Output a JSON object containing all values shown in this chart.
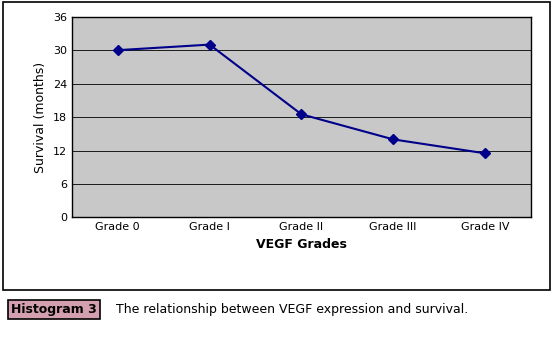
{
  "x_labels": [
    "Grade 0",
    "Grade I",
    "Grade II",
    "Grade III",
    "Grade IV"
  ],
  "y_values": [
    30,
    31,
    18.5,
    14,
    11.5
  ],
  "x_values": [
    0,
    1,
    2,
    3,
    4
  ],
  "line_color": "#00008B",
  "marker": "D",
  "marker_size": 5,
  "xlabel": "VEGF Grades",
  "ylabel": "Survival (months)",
  "ylim": [
    0,
    36
  ],
  "yticks": [
    0,
    6,
    12,
    18,
    24,
    30,
    36
  ],
  "plot_bg_color": "#C8C8C8",
  "caption_label": "Histogram 3",
  "caption_label_bg": "#D4A0B0",
  "caption_text": "The relationship between VEGF expression and survival.",
  "axis_fontsize": 9,
  "tick_fontsize": 8,
  "caption_fontsize": 9,
  "ylabel_fontsize": 9
}
